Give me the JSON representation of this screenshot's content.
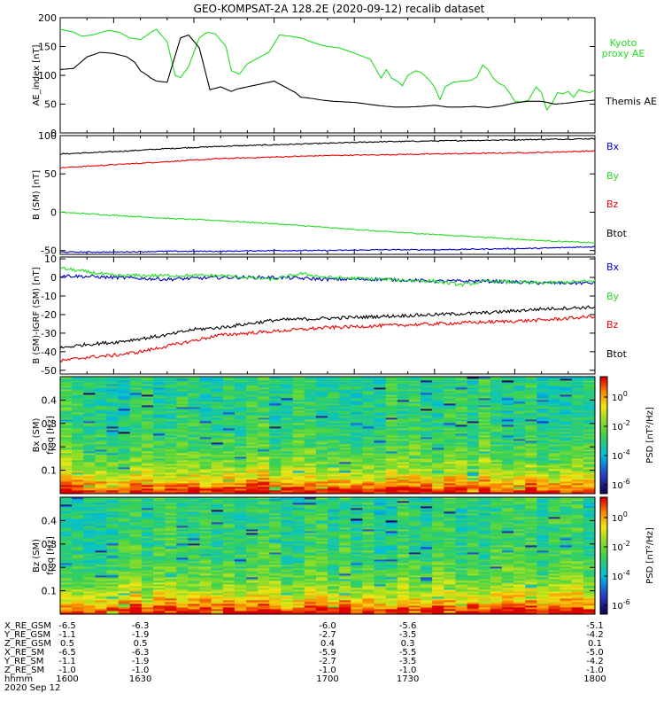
{
  "title": "GEO-KOMPSAT-2A 128.2E (2020-09-12) recalib dataset",
  "colors": {
    "black": "#000000",
    "green": "#22dd22",
    "red": "#ee0000",
    "blue": "#0000cc"
  },
  "chart_data": [
    {
      "type": "line",
      "ylabel": "AE_index [nT]",
      "ylim": [
        0,
        200
      ],
      "yticks": [
        "0",
        "50",
        "100",
        "150",
        "200"
      ],
      "xlim": [
        1600,
        1800
      ],
      "series": [
        {
          "name": "Kyoto proxy AE",
          "legend": "Kyoto\nproxy AE",
          "color": "green",
          "x": [
            1600,
            1605,
            1608,
            1612,
            1618,
            1622,
            1626,
            1630,
            1632,
            1634,
            1636,
            1640,
            1643,
            1645,
            1648,
            1652,
            1655,
            1658,
            1662,
            1664,
            1667,
            1670,
            1674,
            1678,
            1682,
            1686,
            1690,
            1694,
            1698,
            1700,
            1704,
            1708,
            1712,
            1716,
            1720,
            1722,
            1724,
            1726,
            1728,
            1730,
            1733,
            1735,
            1738,
            1740,
            1742,
            1744,
            1747,
            1750,
            1752,
            1754,
            1756,
            1758,
            1760,
            1762,
            1764,
            1766,
            1768,
            1770,
            1772,
            1775,
            1778,
            1780,
            1782,
            1784,
            1786,
            1788,
            1790,
            1792,
            1794,
            1796,
            1798,
            1800
          ],
          "y": [
            180,
            175,
            168,
            170,
            178,
            175,
            165,
            162,
            168,
            175,
            180,
            158,
            100,
            96,
            115,
            165,
            175,
            172,
            150,
            108,
            102,
            120,
            130,
            140,
            170,
            168,
            165,
            158,
            152,
            150,
            148,
            142,
            135,
            128,
            95,
            110,
            95,
            90,
            82,
            100,
            108,
            105,
            92,
            80,
            58,
            80,
            88,
            90,
            90,
            92,
            98,
            118,
            110,
            95,
            86,
            82,
            70,
            55,
            54,
            56,
            80,
            70,
            40,
            52,
            70,
            68,
            72,
            62,
            75,
            72,
            70,
            74
          ]
        },
        {
          "name": "Themis AE",
          "legend": "Themis AE",
          "color": "black",
          "x": [
            1600,
            1605,
            1610,
            1615,
            1620,
            1625,
            1628,
            1630,
            1632,
            1634,
            1636,
            1640,
            1645,
            1648,
            1652,
            1656,
            1660,
            1664,
            1666,
            1670,
            1674,
            1680,
            1684,
            1688,
            1690,
            1694,
            1698,
            1702,
            1706,
            1710,
            1715,
            1720,
            1725,
            1730,
            1735,
            1740,
            1745,
            1750,
            1755,
            1760,
            1765,
            1770,
            1775,
            1780,
            1785,
            1790,
            1795,
            1800
          ],
          "y": [
            110,
            112,
            132,
            140,
            138,
            132,
            122,
            108,
            102,
            95,
            90,
            88,
            165,
            170,
            148,
            75,
            80,
            72,
            76,
            80,
            84,
            90,
            80,
            70,
            62,
            60,
            57,
            55,
            54,
            53,
            50,
            47,
            45,
            45,
            46,
            48,
            45,
            45,
            46,
            44,
            47,
            52,
            55,
            55,
            50,
            52,
            55,
            57
          ]
        }
      ]
    },
    {
      "type": "line",
      "ylabel": "B (SM) [nT]",
      "ylim": [
        -55,
        100
      ],
      "yticks": [
        "-50",
        "0",
        "50",
        "100"
      ],
      "xlim": [
        1600,
        1800
      ],
      "series": [
        {
          "name": "Btot",
          "color": "black",
          "x": [
            1600,
            1620,
            1640,
            1660,
            1680,
            1700,
            1720,
            1740,
            1760,
            1780,
            1800
          ],
          "y": [
            76,
            79,
            83,
            86,
            88,
            90,
            92,
            93,
            94,
            95,
            96
          ]
        },
        {
          "name": "Bz",
          "color": "red",
          "x": [
            1600,
            1620,
            1640,
            1660,
            1680,
            1700,
            1720,
            1740,
            1760,
            1780,
            1800
          ],
          "y": [
            58,
            62,
            66,
            70,
            72,
            74,
            75,
            76,
            77,
            78,
            80
          ]
        },
        {
          "name": "By",
          "color": "green",
          "x": [
            1600,
            1620,
            1640,
            1660,
            1680,
            1700,
            1720,
            1740,
            1760,
            1780,
            1800
          ],
          "y": [
            0,
            -4,
            -8,
            -11,
            -15,
            -20,
            -25,
            -29,
            -33,
            -37,
            -40
          ]
        },
        {
          "name": "Bx",
          "color": "blue",
          "x": [
            1600,
            1620,
            1640,
            1660,
            1680,
            1700,
            1720,
            1740,
            1760,
            1780,
            1800
          ],
          "y": [
            -52,
            -52,
            -51,
            -51,
            -50,
            -50,
            -49,
            -49,
            -48,
            -47,
            -45
          ]
        }
      ],
      "legend_order": [
        "Bx",
        "By",
        "Bz",
        "Btot"
      ]
    },
    {
      "type": "line",
      "ylabel": "B (SM)-IGRF (SM) [nT]",
      "ylim": [
        -52,
        11
      ],
      "yticks": [
        "-50",
        "-40",
        "-30",
        "-20",
        "-10",
        "0",
        "10"
      ],
      "xlim": [
        1600,
        1800
      ],
      "series": [
        {
          "name": "Bx",
          "color": "blue",
          "x": [
            1600,
            1620,
            1640,
            1660,
            1680,
            1700,
            1720,
            1740,
            1760,
            1780,
            1800
          ],
          "y": [
            1,
            0,
            -1,
            0,
            0,
            -1,
            -1,
            -2,
            -2,
            -3,
            -3
          ]
        },
        {
          "name": "By",
          "color": "green",
          "x": [
            1600,
            1610,
            1620,
            1640,
            1660,
            1680,
            1690,
            1700,
            1720,
            1740,
            1750,
            1760,
            1780,
            1800
          ],
          "y": [
            5,
            3,
            1,
            1,
            1,
            -1,
            2,
            0,
            -1,
            -2,
            -4,
            -2,
            -3,
            -2
          ]
        },
        {
          "name": "Btot",
          "color": "black",
          "x": [
            1600,
            1610,
            1620,
            1630,
            1640,
            1650,
            1660,
            1670,
            1680,
            1700,
            1720,
            1740,
            1760,
            1780,
            1800
          ],
          "y": [
            -38,
            -36,
            -35,
            -33,
            -31,
            -28,
            -27,
            -25,
            -23,
            -22,
            -21,
            -20,
            -19,
            -17,
            -16
          ]
        },
        {
          "name": "Bz",
          "color": "red",
          "x": [
            1600,
            1610,
            1620,
            1630,
            1640,
            1650,
            1660,
            1670,
            1680,
            1700,
            1720,
            1740,
            1760,
            1780,
            1800
          ],
          "y": [
            -45,
            -43,
            -42,
            -40,
            -37,
            -34,
            -31,
            -30,
            -29,
            -27,
            -26,
            -25,
            -24,
            -23,
            -21
          ]
        }
      ],
      "legend_order": [
        "Bx",
        "By",
        "Bz",
        "Btot"
      ]
    },
    {
      "type": "heatmap",
      "ylabel": "Bx (SM) freq [Hz]",
      "ylim": [
        0,
        0.5
      ],
      "yticks": [
        "0.1",
        "0.2",
        "0.3",
        "0.4"
      ],
      "xlim": [
        1600,
        1800
      ],
      "colorbar_label": "PSD [nT²/Hz]",
      "colorbar_ticks": [
        "10^0",
        "10^-2",
        "10^-4",
        "10^-6"
      ],
      "description": "PSD highest (red/yellow) at lowest frequencies, mostly green-cyan above 0.15 Hz"
    },
    {
      "type": "heatmap",
      "ylabel": "Bz (SM) freq [Hz]",
      "ylim": [
        0,
        0.5
      ],
      "yticks": [
        "0.1",
        "0.2",
        "0.3",
        "0.4"
      ],
      "xlim": [
        1600,
        1800
      ],
      "colorbar_label": "PSD [nT²/Hz]",
      "colorbar_ticks": [
        "10^0",
        "10^-2",
        "10^-4",
        "10^-6"
      ]
    }
  ],
  "ephemeris": {
    "rows": [
      {
        "label": "X_RE_GSM",
        "values": [
          "-6.5",
          "-6.3",
          "-6.0",
          "-5.6",
          "-5.1"
        ]
      },
      {
        "label": "Y_RE_GSM",
        "values": [
          "-1.1",
          "-1.9",
          "-2.7",
          "-3.5",
          "-4.2"
        ]
      },
      {
        "label": "Z_RE_GSM",
        "values": [
          "0.5",
          "0.5",
          "0.4",
          "0.3",
          "0.1"
        ]
      },
      {
        "label": "X_RE_SM",
        "values": [
          "-6.5",
          "-6.3",
          "-5.9",
          "-5.5",
          "-5.0"
        ]
      },
      {
        "label": "Y_RE_SM",
        "values": [
          "-1.1",
          "-1.9",
          "-2.7",
          "-3.5",
          "-4.2"
        ]
      },
      {
        "label": "Z_RE_SM",
        "values": [
          "-1.0",
          "-1.0",
          "-1.0",
          "-1.0",
          "-1.0"
        ]
      },
      {
        "label": "hhmm",
        "values": [
          "1600",
          "1630",
          "1700",
          "1730",
          "1800"
        ]
      }
    ],
    "date": "2020 Sep 12"
  }
}
